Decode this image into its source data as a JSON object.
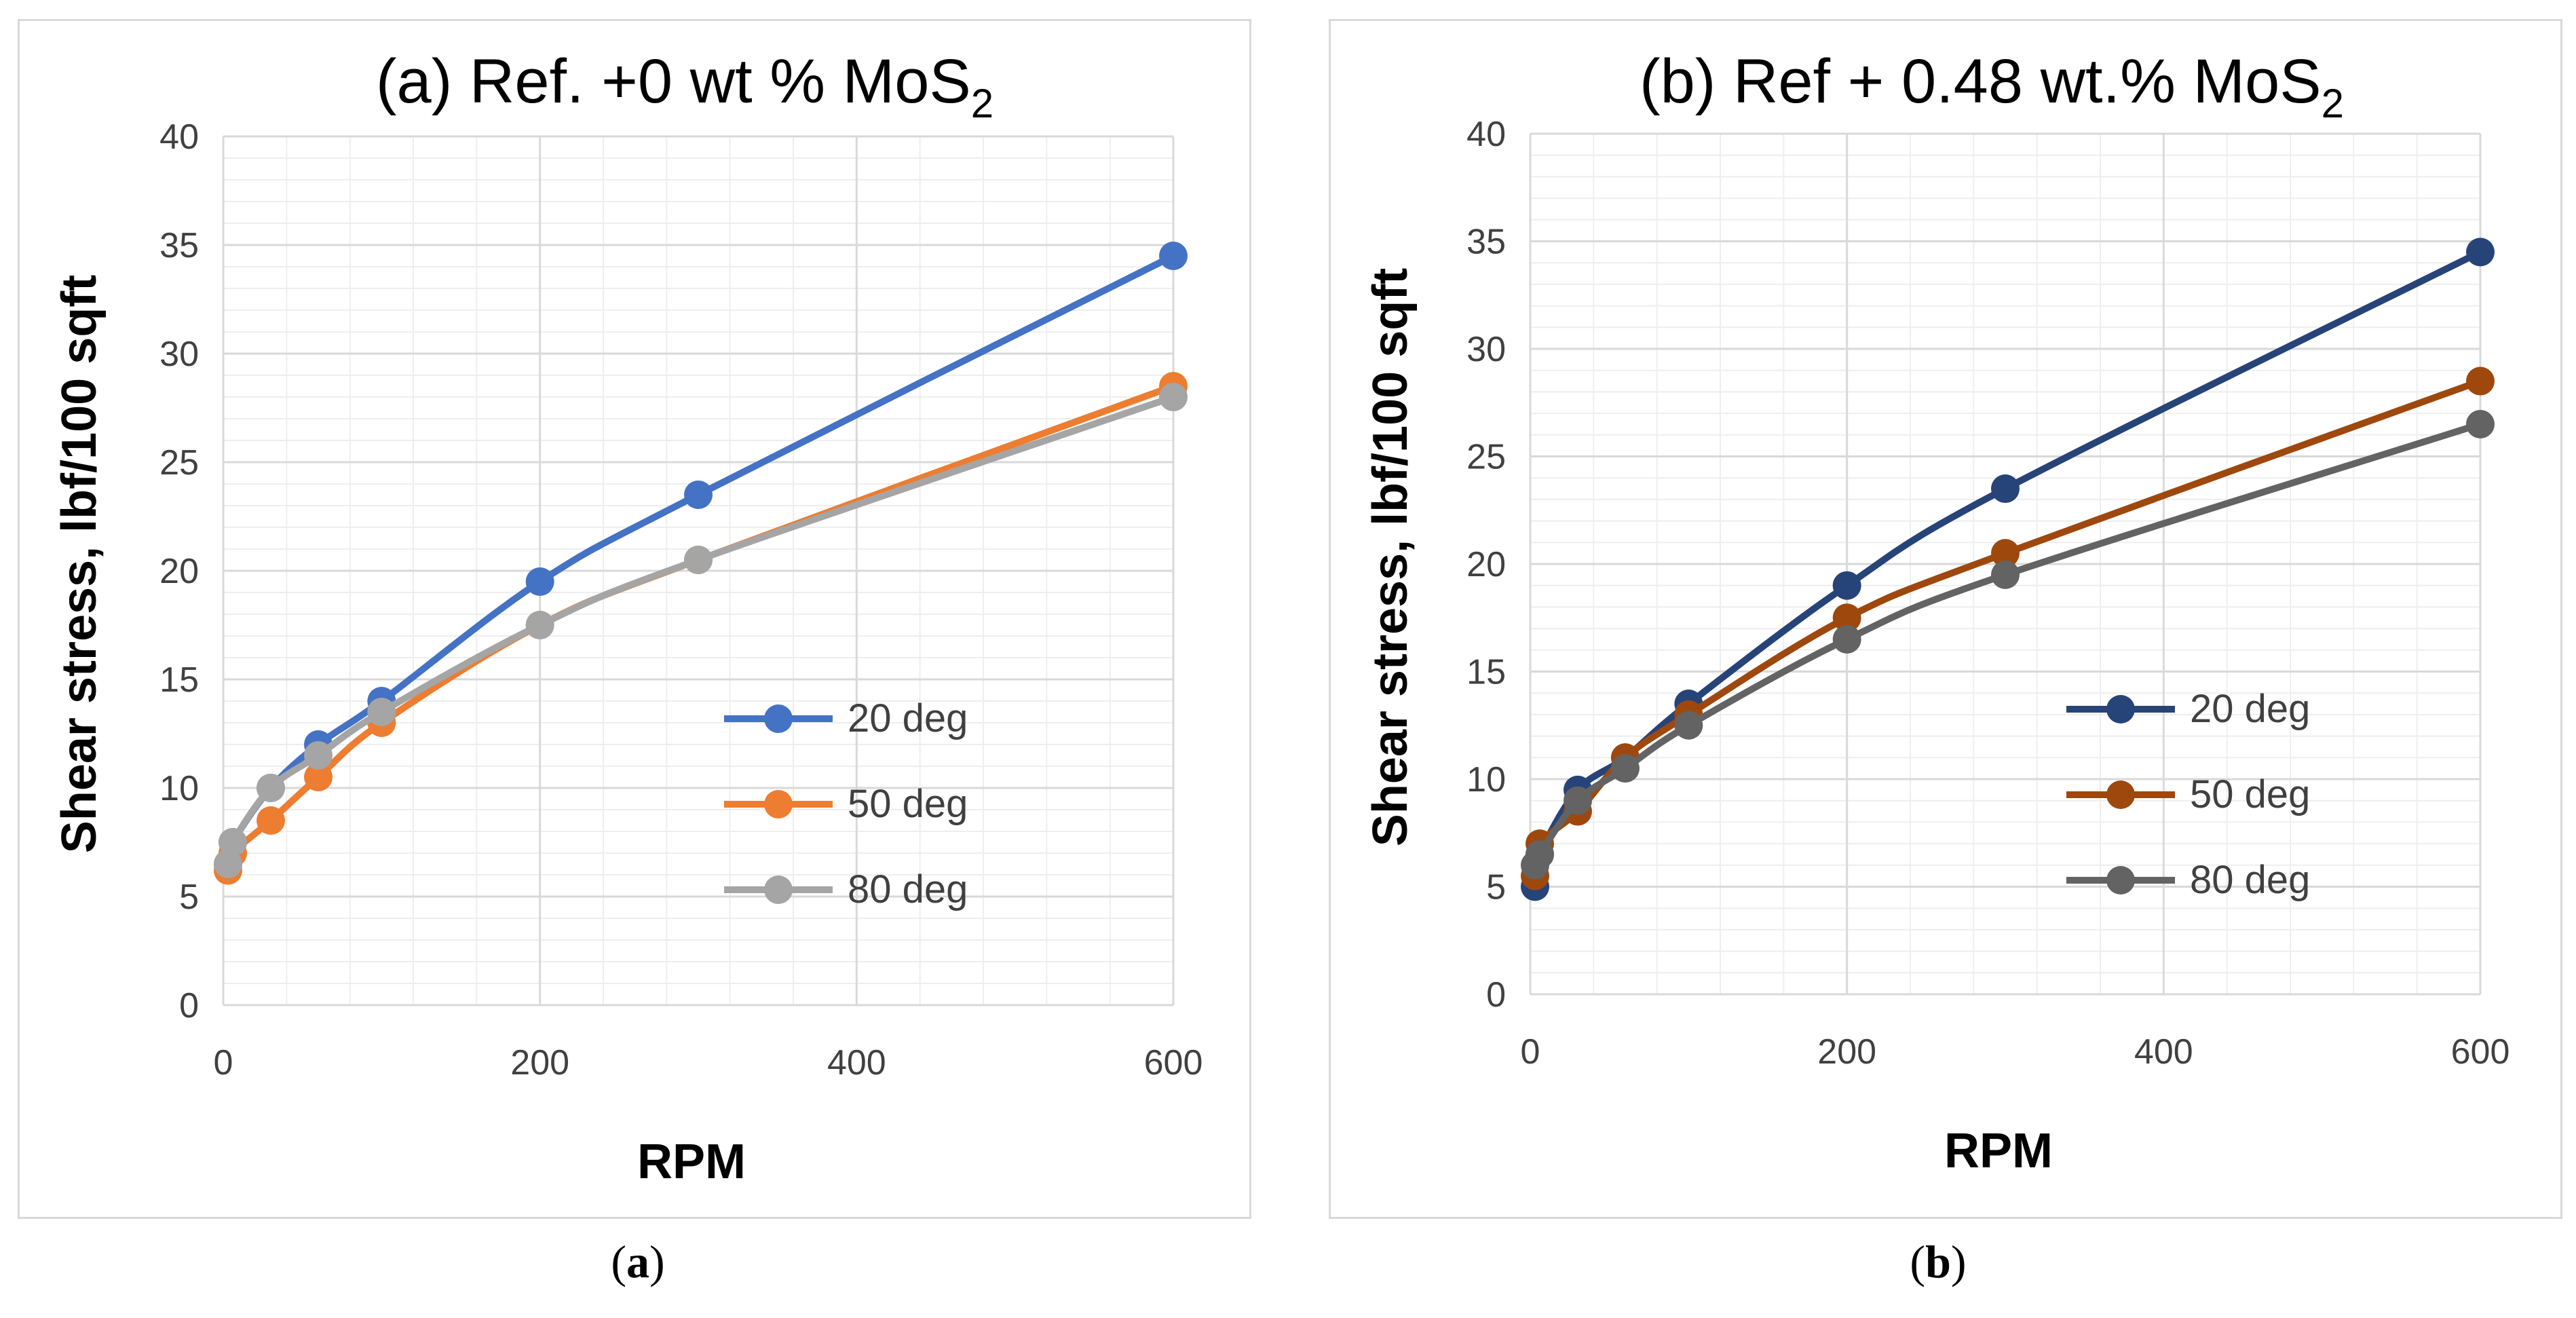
{
  "panels": [
    {
      "letter": "a",
      "caption_open": "(",
      "caption_close": ")"
    },
    {
      "letter": "b",
      "caption_open": "(",
      "caption_close": ")"
    }
  ],
  "chart_data": [
    {
      "type": "line",
      "title": "(a) Ref. +0 wt % MoS",
      "title_subscript": "2",
      "xlabel": "RPM",
      "ylabel": "Shear stress, lbf/100 sqft",
      "xlim": [
        0,
        600
      ],
      "ylim": [
        0,
        40
      ],
      "xticks": [
        0,
        200,
        400,
        600
      ],
      "yticks": [
        0,
        5,
        10,
        15,
        20,
        25,
        30,
        35,
        40
      ],
      "grid": true,
      "legend_position": "center-right",
      "x": [
        3,
        6,
        30,
        60,
        100,
        200,
        300,
        600
      ],
      "series": [
        {
          "name": "20 deg",
          "color": "#4472c4",
          "values": [
            6.5,
            7.5,
            10,
            12,
            14,
            19.5,
            23.5,
            34.5
          ]
        },
        {
          "name": "50 deg",
          "color": "#ed7d31",
          "values": [
            6.2,
            7.0,
            8.5,
            10.5,
            13,
            17.5,
            20.5,
            28.5
          ]
        },
        {
          "name": "80 deg",
          "color": "#a5a5a5",
          "values": [
            6.5,
            7.5,
            10,
            11.5,
            13.5,
            17.5,
            20.5,
            28
          ]
        }
      ]
    },
    {
      "type": "line",
      "title": "(b) Ref + 0.48 wt.% MoS",
      "title_subscript": "2",
      "xlabel": "RPM",
      "ylabel": "Shear stress, lbf/100 sqft",
      "xlim": [
        0,
        600
      ],
      "ylim": [
        0,
        40
      ],
      "xticks": [
        0,
        200,
        400,
        600
      ],
      "yticks": [
        0,
        5,
        10,
        15,
        20,
        25,
        30,
        35,
        40
      ],
      "grid": true,
      "legend_position": "center-right",
      "x": [
        3,
        6,
        30,
        60,
        100,
        200,
        300,
        600
      ],
      "series": [
        {
          "name": "20 deg",
          "color": "#264478",
          "values": [
            5.0,
            6.5,
            9.5,
            11,
            13.5,
            19,
            23.5,
            34.5
          ]
        },
        {
          "name": "50 deg",
          "color": "#9e480e",
          "values": [
            5.5,
            7.0,
            8.5,
            11,
            13,
            17.5,
            20.5,
            28.5
          ]
        },
        {
          "name": "80 deg",
          "color": "#636363",
          "values": [
            6.0,
            6.5,
            9.0,
            10.5,
            12.5,
            16.5,
            19.5,
            26.5
          ]
        }
      ]
    }
  ]
}
